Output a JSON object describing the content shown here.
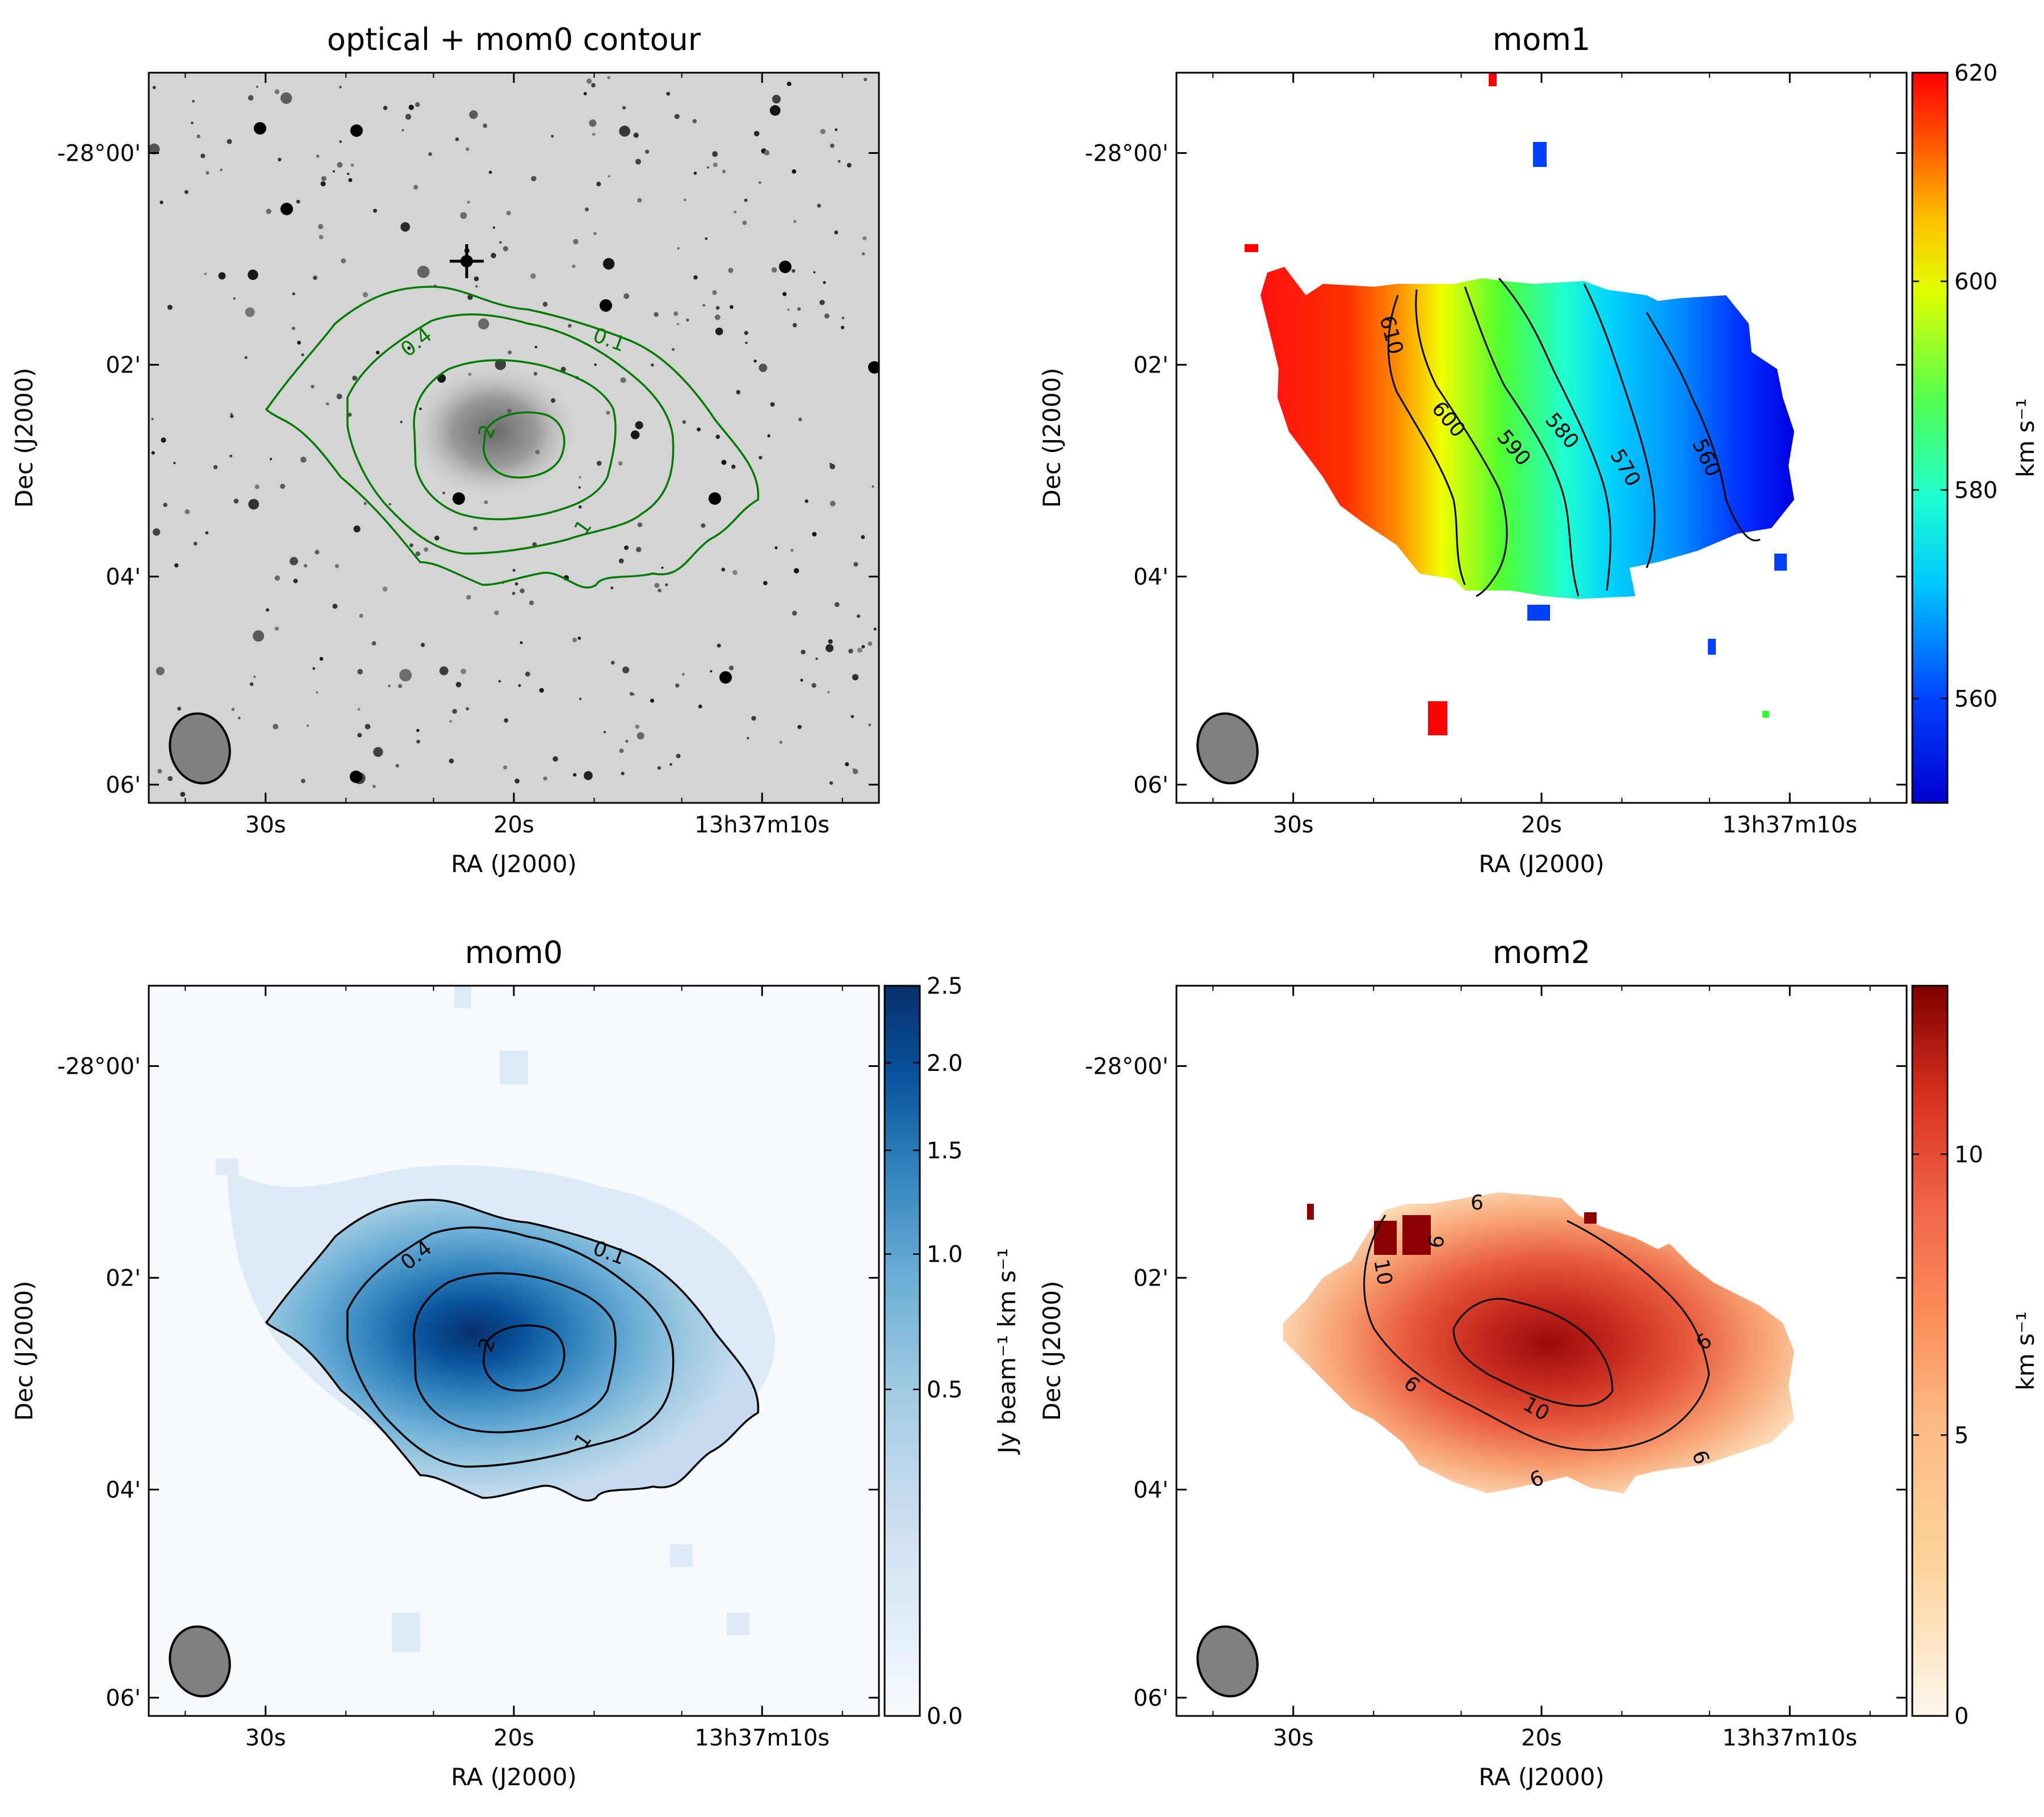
{
  "figure": {
    "panels": [
      {
        "id": "optical",
        "title": "optical + mom0 contour",
        "xlabel": "RA (J2000)",
        "ylabel": "Dec (J2000)",
        "xticks": [
          "30s",
          "20s",
          "13h37m10s"
        ],
        "yticks": [
          "-28°00'",
          "02'",
          "04'",
          "06'"
        ],
        "contour_color": "#007a00",
        "contour_labels": [
          "0.1",
          "0.4",
          "1",
          "2"
        ]
      },
      {
        "id": "mom1",
        "title": "mom1",
        "xlabel": "RA (J2000)",
        "ylabel": "Dec (J2000)",
        "xticks": [
          "30s",
          "20s",
          "13h37m10s"
        ],
        "yticks": [
          "-28°00'",
          "02'",
          "04'",
          "06'"
        ],
        "contour_labels": [
          "610",
          "600",
          "590",
          "580",
          "570",
          "560"
        ],
        "colorbar": {
          "label": "km s⁻¹",
          "ticks": [
            "620",
            "600",
            "580",
            "560"
          ],
          "range": [
            550,
            620
          ],
          "colormap": "jet"
        }
      },
      {
        "id": "mom0",
        "title": "mom0",
        "xlabel": "RA (J2000)",
        "ylabel": "Dec (J2000)",
        "xticks": [
          "30s",
          "20s",
          "13h37m10s"
        ],
        "yticks": [
          "-28°00'",
          "02'",
          "04'",
          "06'"
        ],
        "contour_labels": [
          "0.1",
          "0.4",
          "1",
          "2"
        ],
        "colorbar": {
          "label": "Jy beam⁻¹ km s⁻¹",
          "ticks": [
            "2.5",
            "2.0",
            "1.5",
            "1.0",
            "0.5",
            "0.0"
          ],
          "range": [
            0,
            2.5
          ],
          "colormap": "Blues"
        }
      },
      {
        "id": "mom2",
        "title": "mom2",
        "xlabel": "RA (J2000)",
        "ylabel": "Dec (J2000)",
        "xticks": [
          "30s",
          "20s",
          "13h37m10s"
        ],
        "yticks": [
          "-28°00'",
          "02'",
          "04'",
          "06'"
        ],
        "contour_labels": [
          "6",
          "6",
          "6",
          "10",
          "6",
          "6",
          "6",
          "10"
        ],
        "colorbar": {
          "label": "km s⁻¹",
          "ticks": [
            "10",
            "5",
            "0"
          ],
          "range": [
            0,
            13
          ],
          "colormap": "OrRd"
        }
      }
    ]
  },
  "chart_data": [
    {
      "type": "heatmap",
      "title": "optical + mom0 contour",
      "xlabel": "RA (J2000)",
      "ylabel": "Dec (J2000)",
      "x_ticks": [
        "30s",
        "20s",
        "13h37m10s"
      ],
      "y_ticks": [
        "-28°00'",
        "02'",
        "04'",
        "06'"
      ],
      "description_kind": "greyscale optical image with HI column density contours",
      "contour_levels": [
        0.1,
        0.4,
        1,
        2
      ]
    },
    {
      "type": "heatmap",
      "title": "mom1",
      "xlabel": "RA (J2000)",
      "ylabel": "Dec (J2000)",
      "x_ticks": [
        "30s",
        "20s",
        "13h37m10s"
      ],
      "y_ticks": [
        "-28°00'",
        "02'",
        "04'",
        "06'"
      ],
      "colorbar_label": "km s⁻¹",
      "colorbar_range": [
        550,
        620
      ],
      "colorbar_ticks": [
        560,
        580,
        600,
        620
      ],
      "contour_levels": [
        560,
        570,
        580,
        590,
        600,
        610
      ]
    },
    {
      "type": "heatmap",
      "title": "mom0",
      "xlabel": "RA (J2000)",
      "ylabel": "Dec (J2000)",
      "x_ticks": [
        "30s",
        "20s",
        "13h37m10s"
      ],
      "y_ticks": [
        "-28°00'",
        "02'",
        "04'",
        "06'"
      ],
      "colorbar_label": "Jy beam⁻¹ km s⁻¹",
      "colorbar_range": [
        0,
        2.5
      ],
      "colorbar_ticks": [
        0.0,
        0.5,
        1.0,
        1.5,
        2.0,
        2.5
      ],
      "contour_levels": [
        0.1,
        0.4,
        1,
        2
      ]
    },
    {
      "type": "heatmap",
      "title": "mom2",
      "xlabel": "RA (J2000)",
      "ylabel": "Dec (J2000)",
      "x_ticks": [
        "30s",
        "20s",
        "13h37m10s"
      ],
      "y_ticks": [
        "-28°00'",
        "02'",
        "04'",
        "06'"
      ],
      "colorbar_label": "km s⁻¹",
      "colorbar_range": [
        0,
        13
      ],
      "colorbar_ticks": [
        0,
        5,
        10
      ],
      "contour_levels": [
        6,
        10
      ]
    }
  ]
}
